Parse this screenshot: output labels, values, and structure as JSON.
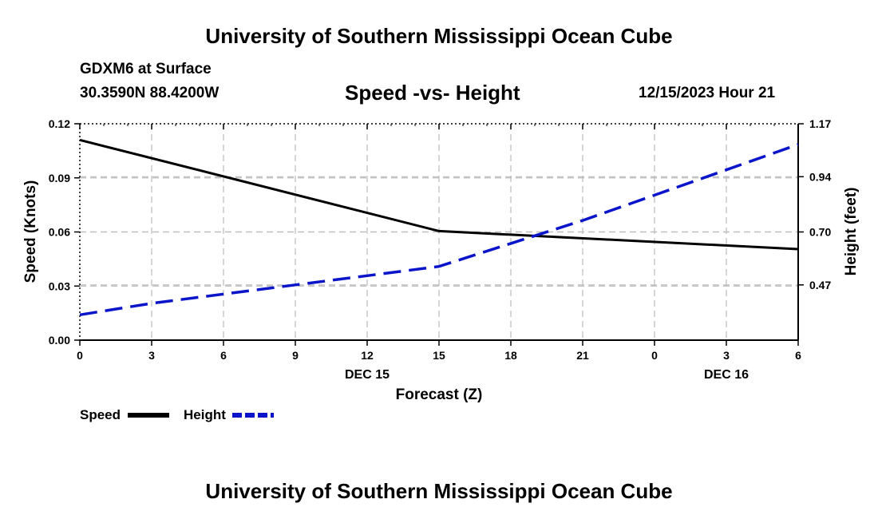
{
  "header": {
    "title": "University of Southern Mississippi Ocean Cube",
    "station": "GDXM6 at Surface",
    "coords": "30.3590N  88.4200W",
    "subtitle": "Speed -vs- Height",
    "datetime": "12/15/2023 Hour 21"
  },
  "footer": {
    "title": "University of Southern Mississippi Ocean Cube"
  },
  "legend": {
    "speed_label": "Speed",
    "height_label": "Height"
  },
  "colors": {
    "speed": "#000000",
    "height": "#0a14c8",
    "grid": "#bbbbbb"
  },
  "chart_data": {
    "type": "line",
    "title": "Speed -vs- Height",
    "xlabel": "Forecast (Z)",
    "ylabel": "Speed (Knots)",
    "y2label": "Height (feet)",
    "x_hours": [
      0,
      3,
      6,
      9,
      12,
      15,
      18,
      21,
      24,
      27,
      30
    ],
    "x_tick_labels": [
      "0",
      "3",
      "6",
      "9",
      "12",
      "15",
      "18",
      "21",
      "0",
      "3",
      "6"
    ],
    "x_date_labels": [
      {
        "hour": 12,
        "label": "DEC 15"
      },
      {
        "hour": 27,
        "label": "DEC 16"
      }
    ],
    "xlim": [
      0,
      30
    ],
    "ylim": [
      0,
      0.12
    ],
    "y_ticks": [
      "0.00",
      "0.03",
      "0.06",
      "0.09",
      "0.12"
    ],
    "y2lim": [
      0.23,
      1.17
    ],
    "y2_ticks": [
      "0.47",
      "0.70",
      "0.94",
      "1.17"
    ],
    "series": [
      {
        "name": "Speed",
        "axis": "left",
        "style": "solid",
        "points": [
          [
            0,
            0.111
          ],
          [
            15,
            0.0605
          ],
          [
            30,
            0.0505
          ]
        ]
      },
      {
        "name": "Height",
        "axis": "right",
        "style": "dashed",
        "points": [
          [
            0,
            0.34
          ],
          [
            3,
            0.39
          ],
          [
            6,
            0.43
          ],
          [
            9,
            0.47
          ],
          [
            12,
            0.51
          ],
          [
            15,
            0.55
          ],
          [
            18,
            0.65
          ],
          [
            21,
            0.75
          ],
          [
            24,
            0.86
          ],
          [
            27,
            0.97
          ],
          [
            30,
            1.08
          ]
        ]
      }
    ]
  }
}
